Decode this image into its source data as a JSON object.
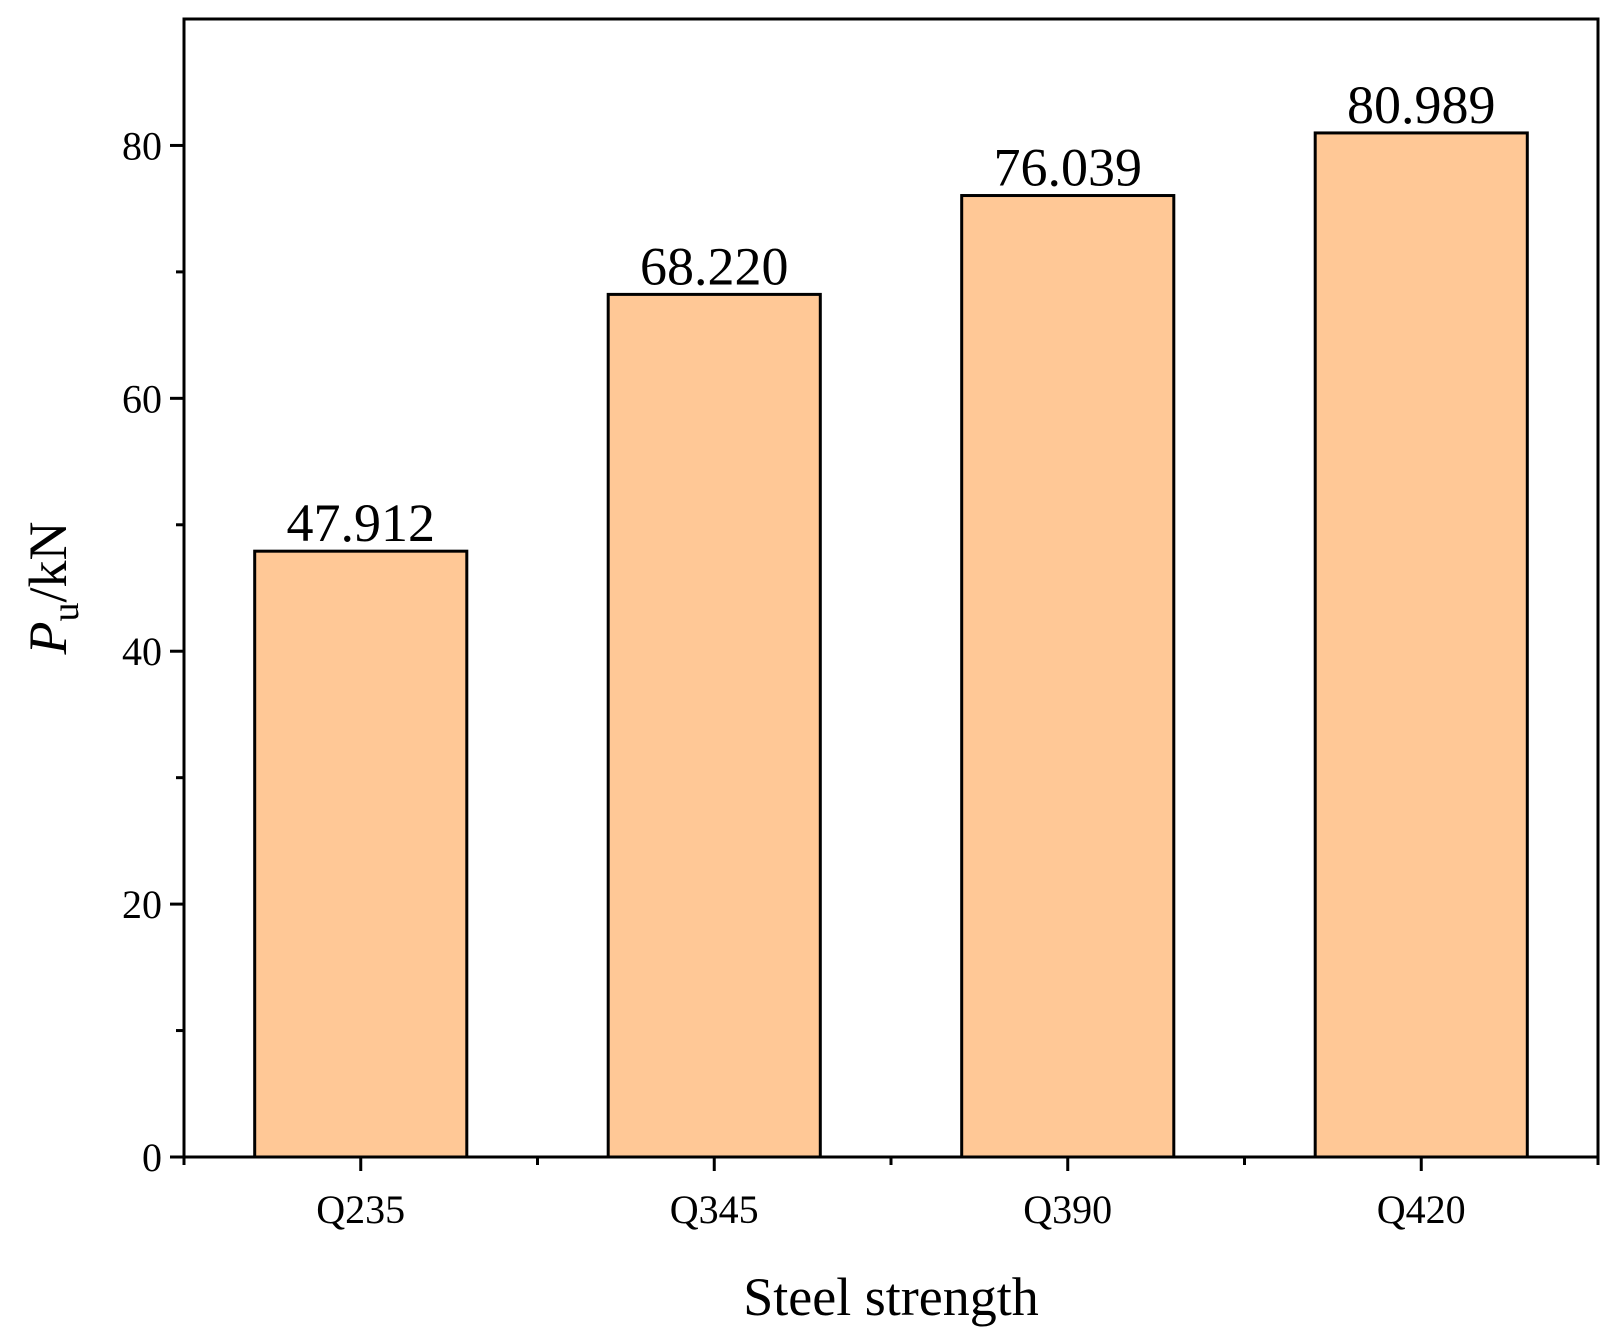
{
  "chart_data": {
    "type": "bar",
    "categories": [
      "Q235",
      "Q345",
      "Q390",
      "Q420"
    ],
    "values": [
      47.912,
      68.22,
      76.039,
      80.989
    ],
    "value_labels": [
      "47.912",
      "68.220",
      "76.039",
      "80.989"
    ],
    "xlabel": "Steel strength",
    "ylabel": {
      "main": "P",
      "subscript": "u",
      "unit": "/kN"
    },
    "ylim": [
      0,
      90
    ],
    "y_major_ticks": [
      0,
      20,
      40,
      60,
      80
    ],
    "y_minor_ticks": [
      10,
      30,
      50,
      70
    ],
    "grid": false,
    "legend": "none"
  },
  "colors": {
    "bar_fill": "#FFC896",
    "bar_stroke": "#000000",
    "axis": "#000000",
    "text": "#000000",
    "background": "#FFFFFF"
  }
}
